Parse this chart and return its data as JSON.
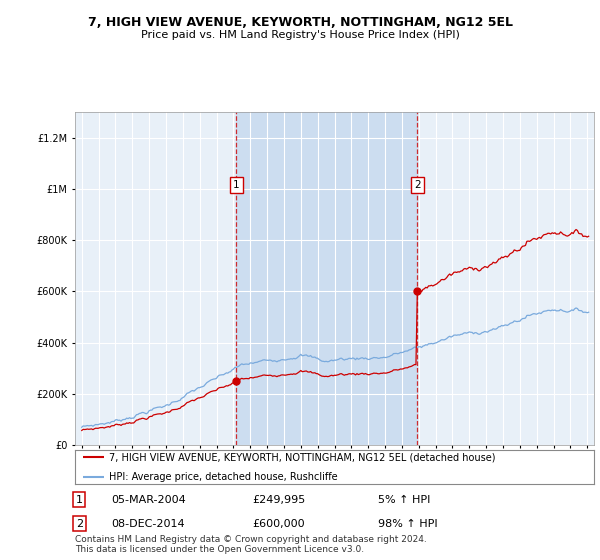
{
  "title": "7, HIGH VIEW AVENUE, KEYWORTH, NOTTINGHAM, NG12 5EL",
  "subtitle": "Price paid vs. HM Land Registry's House Price Index (HPI)",
  "ytick_values": [
    0,
    200000,
    400000,
    600000,
    800000,
    1000000,
    1200000
  ],
  "ylim": [
    0,
    1300000
  ],
  "xlim_start": 1994.6,
  "xlim_end": 2025.4,
  "xticks": [
    1995,
    1996,
    1997,
    1998,
    1999,
    2000,
    2001,
    2002,
    2003,
    2004,
    2005,
    2006,
    2007,
    2008,
    2009,
    2010,
    2011,
    2012,
    2013,
    2014,
    2015,
    2016,
    2017,
    2018,
    2019,
    2020,
    2021,
    2022,
    2023,
    2024,
    2025
  ],
  "sale1_x": 2004.17,
  "sale1_y": 249995,
  "sale1_label": "1",
  "sale2_x": 2014.92,
  "sale2_y": 600000,
  "sale2_label": "2",
  "sale1_date": "05-MAR-2004",
  "sale1_price": "£249,995",
  "sale1_hpi": "5% ↑ HPI",
  "sale2_date": "08-DEC-2014",
  "sale2_price": "£600,000",
  "sale2_hpi": "98% ↑ HPI",
  "legend_line1": "7, HIGH VIEW AVENUE, KEYWORTH, NOTTINGHAM, NG12 5EL (detached house)",
  "legend_line2": "HPI: Average price, detached house, Rushcliffe",
  "footer": "Contains HM Land Registry data © Crown copyright and database right 2024.\nThis data is licensed under the Open Government Licence v3.0.",
  "property_color": "#cc0000",
  "hpi_color": "#7aaadd",
  "background_plot": "#e8f0f8",
  "shade_color": "#ccddf0",
  "background_fig": "#ffffff",
  "grid_color": "#ffffff"
}
